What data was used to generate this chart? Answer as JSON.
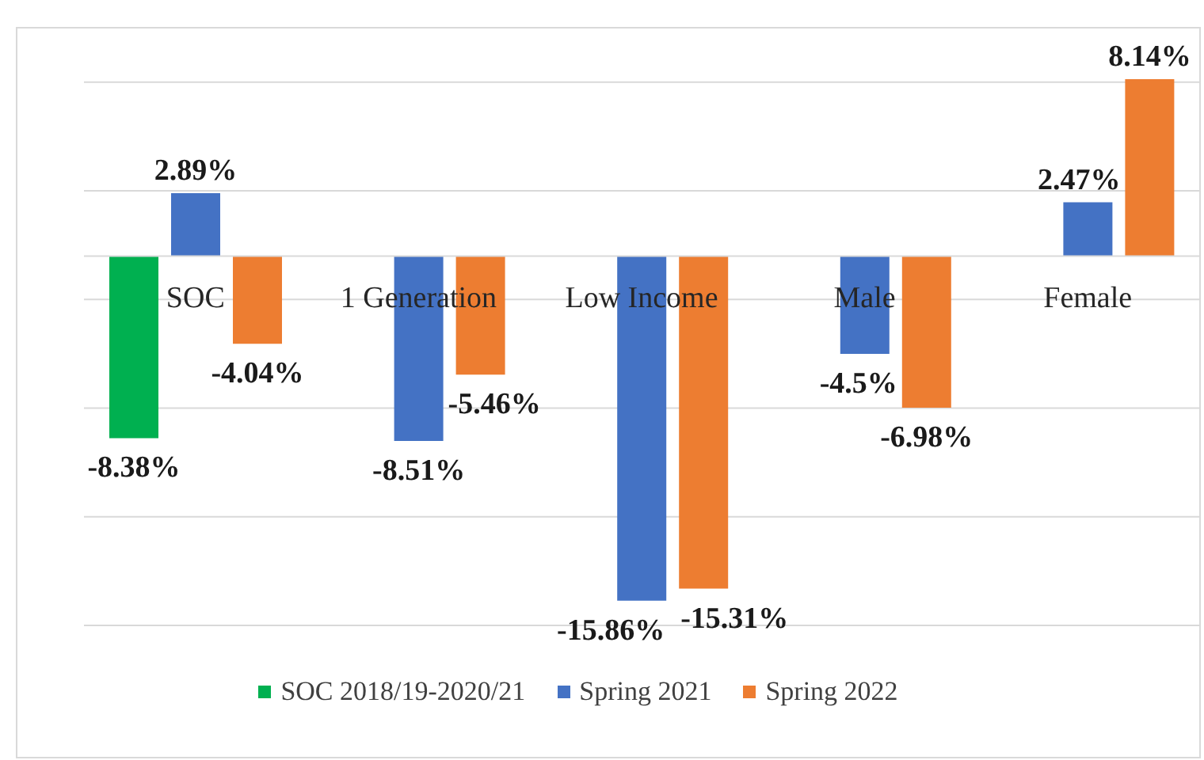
{
  "chart_data": {
    "type": "bar",
    "categories": [
      "SOC",
      "1 Generation",
      "Low Income",
      "Male",
      "Female"
    ],
    "series": [
      {
        "name": "SOC 2018/19-2020/21",
        "color": "#00b050",
        "values": [
          -8.38,
          null,
          null,
          null,
          null
        ],
        "value_labels": [
          "-8.38%",
          null,
          null,
          null,
          null
        ]
      },
      {
        "name": "Spring 2021",
        "color": "#4472c4",
        "values": [
          2.89,
          -8.51,
          -15.86,
          -4.5,
          2.47
        ],
        "value_labels": [
          "2.89%",
          "-8.51%",
          "-15.86%",
          "-4.5%",
          "2.47%"
        ]
      },
      {
        "name": "Spring 2022",
        "color": "#ed7d31",
        "values": [
          -4.04,
          -5.46,
          -15.31,
          -6.98,
          8.14
        ],
        "value_labels": [
          "-4.04%",
          "-5.46%",
          "-15.31%",
          "-6.98%",
          "8.14%"
        ]
      }
    ],
    "yticks": [
      {
        "value": -17,
        "label": null
      },
      {
        "value": -12,
        "label": null
      },
      {
        "value": -7,
        "label": null
      },
      {
        "value": -2,
        "label": null
      },
      {
        "value": 3,
        "label": null
      },
      {
        "value": 8,
        "label": null
      }
    ],
    "grid": "y",
    "legend": "bottom",
    "tick_labels": "x"
  }
}
